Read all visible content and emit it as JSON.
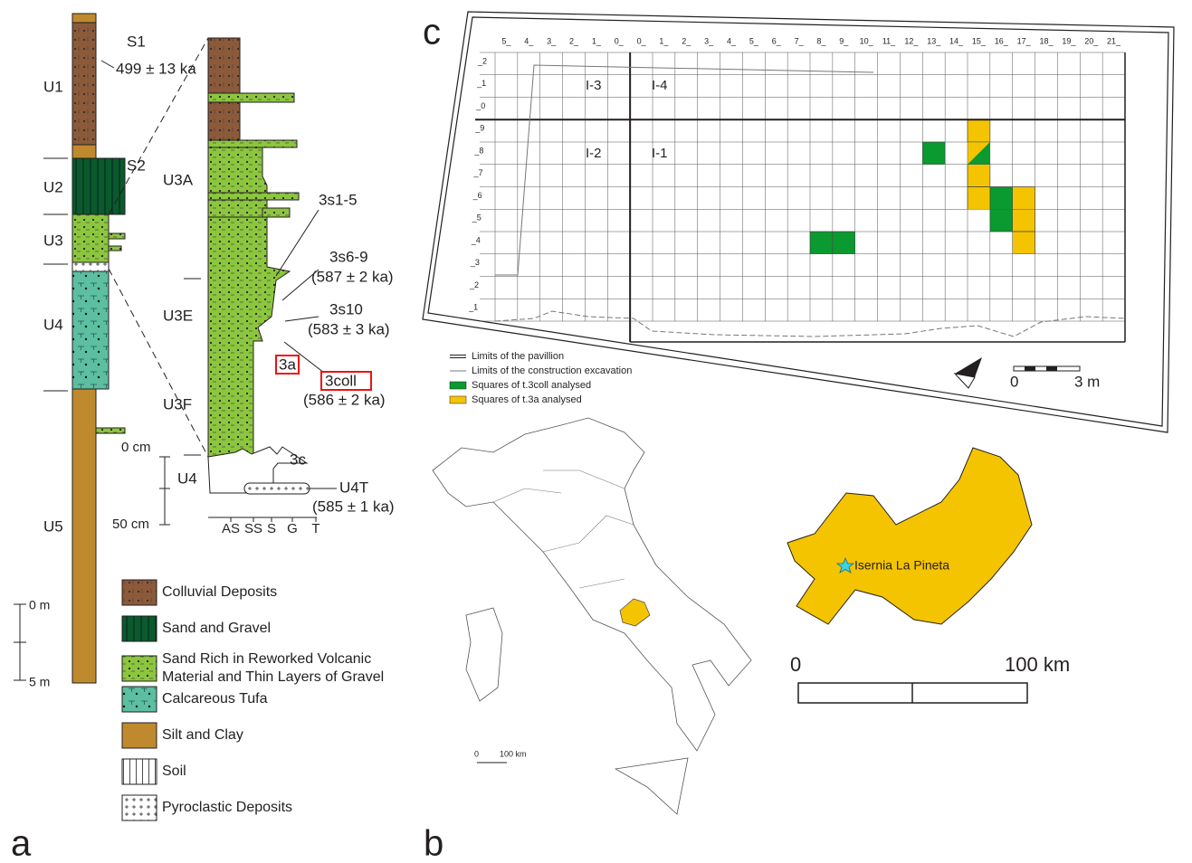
{
  "panel_a": {
    "label": "a",
    "units": [
      "U1",
      "U2",
      "U3",
      "U4",
      "U5"
    ],
    "soils": [
      "S1",
      "S2"
    ],
    "date_s1": "499 ± 13 ka",
    "scale": [
      "0 m",
      "5 m"
    ],
    "detail": {
      "units": [
        "U3A",
        "U3E",
        "U3F",
        "U4"
      ],
      "samples": [
        {
          "name": "3s1-5"
        },
        {
          "name": "3s6-9",
          "date": "(587 ± 2 ka)"
        },
        {
          "name": "3s10",
          "date": "(583 ± 3 ka)"
        },
        {
          "name": "3a"
        },
        {
          "name": "3coll",
          "date": "(586 ± 2 ka)"
        },
        {
          "name": "3c"
        },
        {
          "name": "U4T",
          "date": "(585 ± 1 ka)"
        }
      ],
      "depth_scale": [
        "0 cm",
        "50 cm"
      ],
      "grain_sizes": [
        "AS",
        "SS",
        "S",
        "G",
        "T"
      ]
    },
    "legend": [
      [
        "Colluvial Deposits"
      ],
      [
        "Sand and Gravel"
      ],
      [
        "Sand Rich in Reworked Volcanic",
        "Material and Thin Layers of Gravel"
      ],
      [
        "Calcareous Tufa"
      ],
      [
        "Silt and Clay"
      ],
      [
        "Soil"
      ],
      [
        "Pyroclastic Deposits"
      ]
    ]
  },
  "panel_b": {
    "label": "b",
    "italy_scale": [
      "0",
      "100 km"
    ],
    "site": "Isernia La Pineta",
    "molise_scale": [
      "0",
      "100 km"
    ]
  },
  "panel_c": {
    "label": "c",
    "columns": [
      "5_",
      "4_",
      "3_",
      "2_",
      "1_",
      "0_",
      "0_",
      "1_",
      "2_",
      "3_",
      "4_",
      "5_",
      "6_",
      "7_",
      "8_",
      "9_",
      "10_",
      "11_",
      "12_",
      "13_",
      "14_",
      "15_",
      "16_",
      "17_",
      "18_",
      "19_",
      "20_",
      "21_"
    ],
    "rows": [
      "_2",
      "_1",
      "_0",
      "_9",
      "_8",
      "_7",
      "_6",
      "_5",
      "_4",
      "_3",
      "_2",
      "_1"
    ],
    "sectors": [
      "I-3",
      "I-4",
      "I-2",
      "I-1"
    ],
    "legend": [
      "Limits of the pavillion",
      "Limits of the construction excavation",
      "Squares of t.3coll analysed",
      "Squares of t.3a analysed"
    ],
    "scale": [
      "0",
      "3 m"
    ]
  }
}
